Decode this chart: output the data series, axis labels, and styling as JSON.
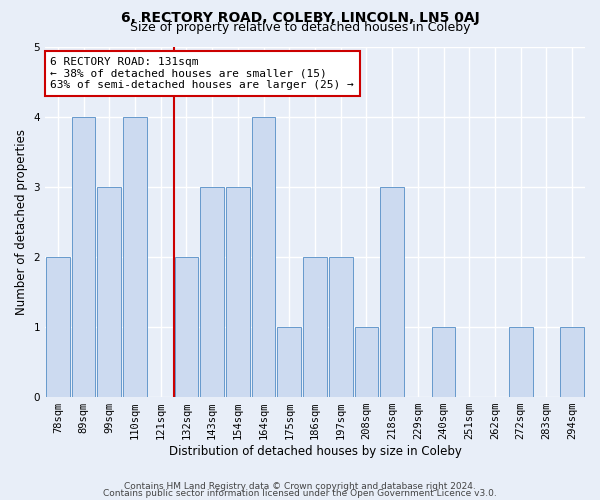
{
  "title1": "6, RECTORY ROAD, COLEBY, LINCOLN, LN5 0AJ",
  "title2": "Size of property relative to detached houses in Coleby",
  "xlabel": "Distribution of detached houses by size in Coleby",
  "ylabel": "Number of detached properties",
  "categories": [
    "78sqm",
    "89sqm",
    "99sqm",
    "110sqm",
    "121sqm",
    "132sqm",
    "143sqm",
    "154sqm",
    "164sqm",
    "175sqm",
    "186sqm",
    "197sqm",
    "208sqm",
    "218sqm",
    "229sqm",
    "240sqm",
    "251sqm",
    "262sqm",
    "272sqm",
    "283sqm",
    "294sqm"
  ],
  "values": [
    2,
    4,
    3,
    4,
    0,
    2,
    3,
    3,
    4,
    1,
    2,
    2,
    1,
    3,
    0,
    1,
    0,
    0,
    1,
    0,
    1
  ],
  "bar_color": "#ccdaf0",
  "bar_edge_color": "#6699cc",
  "red_line_x": 4.5,
  "annotation_text": "6 RECTORY ROAD: 131sqm\n← 38% of detached houses are smaller (15)\n63% of semi-detached houses are larger (25) →",
  "annotation_box_color": "white",
  "annotation_box_edge_color": "#cc0000",
  "ylim": [
    0,
    5
  ],
  "yticks": [
    0,
    1,
    2,
    3,
    4,
    5
  ],
  "footer1": "Contains HM Land Registry data © Crown copyright and database right 2024.",
  "footer2": "Contains public sector information licensed under the Open Government Licence v3.0.",
  "background_color": "#e8eef8",
  "grid_color": "white",
  "title1_fontsize": 10,
  "title2_fontsize": 9,
  "xlabel_fontsize": 8.5,
  "ylabel_fontsize": 8.5,
  "tick_fontsize": 7.5,
  "annotation_fontsize": 8,
  "footer_fontsize": 6.5
}
